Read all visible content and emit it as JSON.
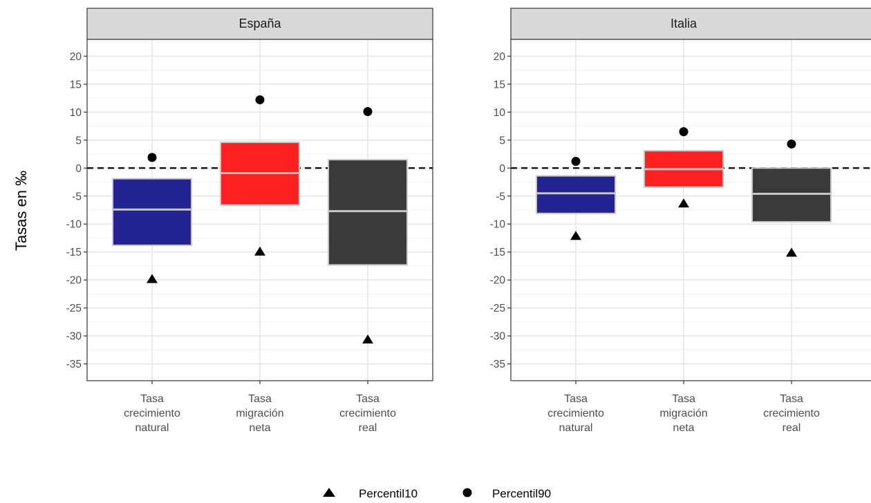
{
  "ylabel": "Tasas en ‰",
  "legend": {
    "p10_label": "Percentil10",
    "p90_label": "Percentil90"
  },
  "chart_data": {
    "type": "crossbar",
    "ylabel": "Tasas en ‰",
    "ylim": [
      -38,
      23
    ],
    "yticks": [
      20,
      15,
      10,
      5,
      0,
      -5,
      -10,
      -15,
      -20,
      -25,
      -30,
      -35
    ],
    "grid": true,
    "reference_line": 0,
    "legend_position": "bottom",
    "categories": [
      [
        "Tasa",
        "crecimiento",
        "natural"
      ],
      [
        "Tasa",
        "migración",
        "neta"
      ],
      [
        "Tasa",
        "crecimiento",
        "real"
      ]
    ],
    "colors": [
      "#232394",
      "#ff2121",
      "#3a3a3a"
    ],
    "panels": [
      {
        "title": "España",
        "boxes": [
          {
            "lower": -13.8,
            "middle": -7.4,
            "upper": -1.9,
            "p10": -19.8,
            "p90": 1.9
          },
          {
            "lower": -6.6,
            "middle": -0.9,
            "upper": 4.6,
            "p10": -14.9,
            "p90": 12.2
          },
          {
            "lower": -17.3,
            "middle": -7.7,
            "upper": 1.5,
            "p10": -30.6,
            "p90": 10.1
          }
        ]
      },
      {
        "title": "Italia",
        "boxes": [
          {
            "lower": -8.1,
            "middle": -4.5,
            "upper": -1.4,
            "p10": -12.1,
            "p90": 1.2
          },
          {
            "lower": -3.4,
            "middle": -0.2,
            "upper": 3.1,
            "p10": -6.3,
            "p90": 6.5
          },
          {
            "lower": -9.6,
            "middle": -4.6,
            "upper": 0.0,
            "p10": -15.1,
            "p90": 4.3
          }
        ]
      }
    ]
  }
}
